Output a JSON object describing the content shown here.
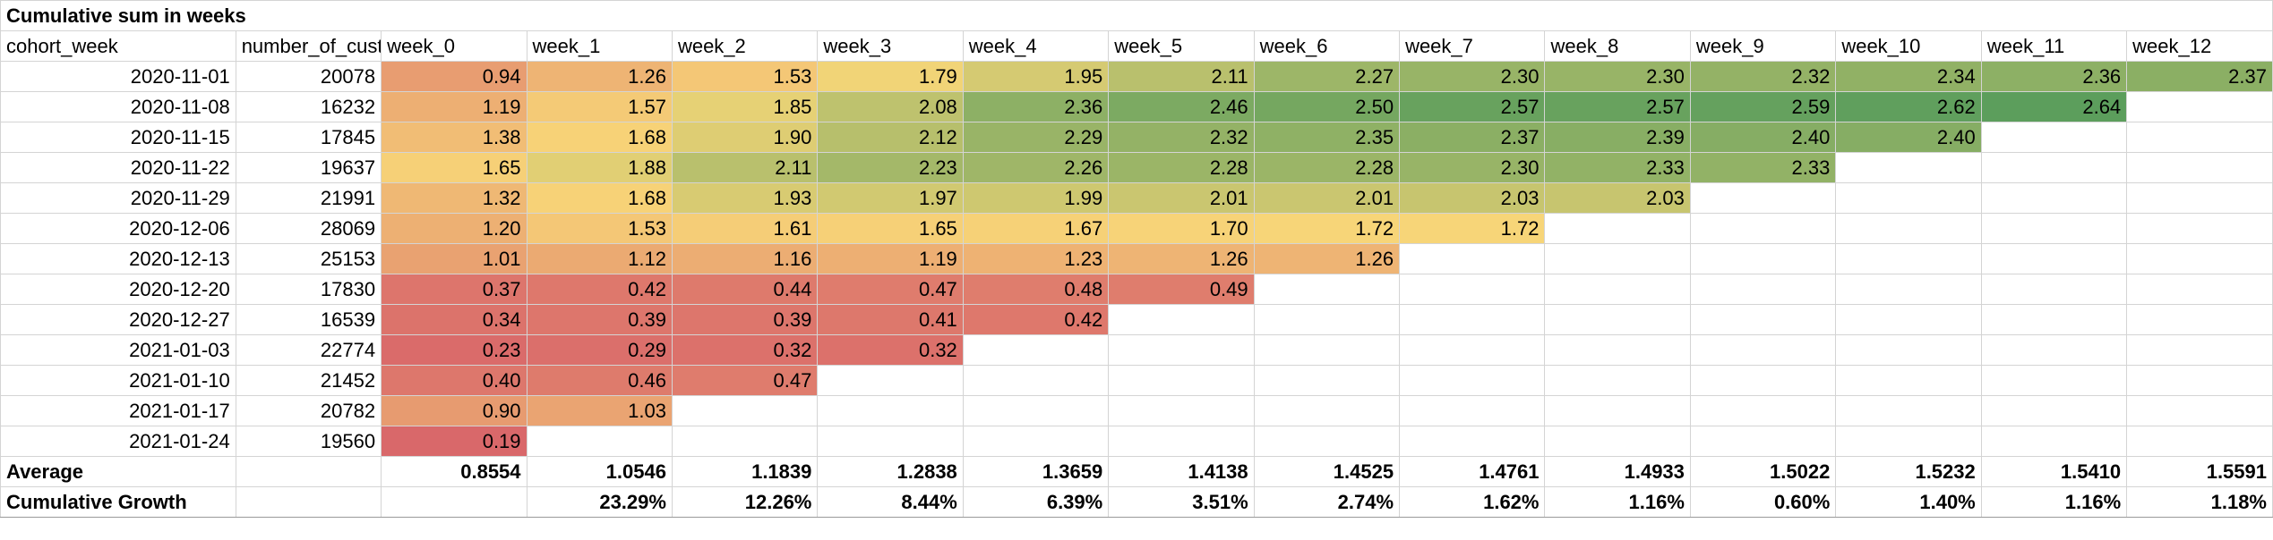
{
  "title": "Cumulative sum in weeks",
  "headers": [
    "cohort_week",
    "number_of_custo",
    "week_0",
    "week_1",
    "week_2",
    "week_3",
    "week_4",
    "week_5",
    "week_6",
    "week_7",
    "week_8",
    "week_9",
    "week_10",
    "week_11",
    "week_12"
  ],
  "rows": [
    {
      "cohort_week": "2020-11-01",
      "number_of_customers": "20078",
      "values": [
        "0.94",
        "1.26",
        "1.53",
        "1.79",
        "1.95",
        "2.11",
        "2.27",
        "2.30",
        "2.30",
        "2.32",
        "2.34",
        "2.36",
        "2.37"
      ]
    },
    {
      "cohort_week": "2020-11-08",
      "number_of_customers": "16232",
      "values": [
        "1.19",
        "1.57",
        "1.85",
        "2.08",
        "2.36",
        "2.46",
        "2.50",
        "2.57",
        "2.57",
        "2.59",
        "2.62",
        "2.64"
      ]
    },
    {
      "cohort_week": "2020-11-15",
      "number_of_customers": "17845",
      "values": [
        "1.38",
        "1.68",
        "1.90",
        "2.12",
        "2.29",
        "2.32",
        "2.35",
        "2.37",
        "2.39",
        "2.40",
        "2.40"
      ]
    },
    {
      "cohort_week": "2020-11-22",
      "number_of_customers": "19637",
      "values": [
        "1.65",
        "1.88",
        "2.11",
        "2.23",
        "2.26",
        "2.28",
        "2.28",
        "2.30",
        "2.33",
        "2.33"
      ]
    },
    {
      "cohort_week": "2020-11-29",
      "number_of_customers": "21991",
      "values": [
        "1.32",
        "1.68",
        "1.93",
        "1.97",
        "1.99",
        "2.01",
        "2.01",
        "2.03",
        "2.03"
      ]
    },
    {
      "cohort_week": "2020-12-06",
      "number_of_customers": "28069",
      "values": [
        "1.20",
        "1.53",
        "1.61",
        "1.65",
        "1.67",
        "1.70",
        "1.72",
        "1.72"
      ]
    },
    {
      "cohort_week": "2020-12-13",
      "number_of_customers": "25153",
      "values": [
        "1.01",
        "1.12",
        "1.16",
        "1.19",
        "1.23",
        "1.26",
        "1.26"
      ]
    },
    {
      "cohort_week": "2020-12-20",
      "number_of_customers": "17830",
      "values": [
        "0.37",
        "0.42",
        "0.44",
        "0.47",
        "0.48",
        "0.49"
      ]
    },
    {
      "cohort_week": "2020-12-27",
      "number_of_customers": "16539",
      "values": [
        "0.34",
        "0.39",
        "0.39",
        "0.41",
        "0.42"
      ]
    },
    {
      "cohort_week": "2021-01-03",
      "number_of_customers": "22774",
      "values": [
        "0.23",
        "0.29",
        "0.32",
        "0.32"
      ]
    },
    {
      "cohort_week": "2021-01-10",
      "number_of_customers": "21452",
      "values": [
        "0.40",
        "0.46",
        "0.47"
      ]
    },
    {
      "cohort_week": "2021-01-17",
      "number_of_customers": "20782",
      "values": [
        "0.90",
        "1.03"
      ]
    },
    {
      "cohort_week": "2021-01-24",
      "number_of_customers": "19560",
      "values": [
        "0.19"
      ]
    }
  ],
  "average": {
    "label": "Average",
    "values": [
      "0.8554",
      "1.0546",
      "1.1839",
      "1.2838",
      "1.3659",
      "1.4138",
      "1.4525",
      "1.4761",
      "1.4933",
      "1.5022",
      "1.5232",
      "1.5410",
      "1.5591"
    ]
  },
  "growth": {
    "label": "Cumulative Growth",
    "values": [
      "",
      "23.29%",
      "12.26%",
      "8.44%",
      "6.39%",
      "3.51%",
      "2.74%",
      "1.62%",
      "1.16%",
      "0.60%",
      "1.40%",
      "1.16%",
      "1.18%"
    ]
  },
  "colors": {
    "low": "#d9686a",
    "mid": "#f8d778",
    "high": "#5c9e5c",
    "grid": "#d4d4d4"
  }
}
